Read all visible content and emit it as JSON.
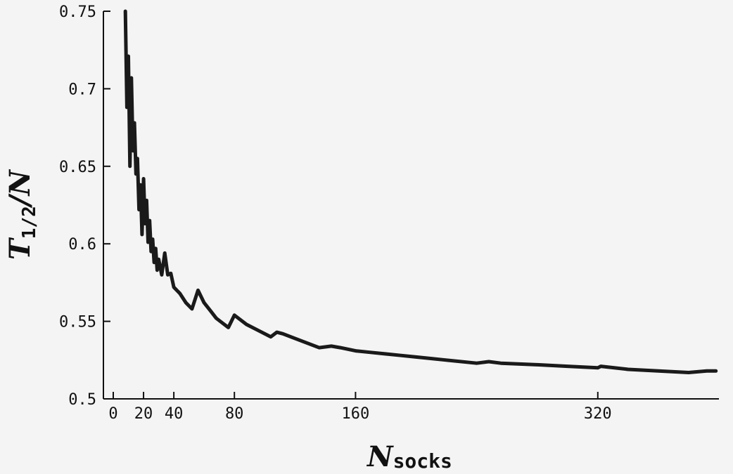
{
  "chart_data": {
    "type": "line",
    "title": "",
    "xlabel": {
      "main": "N",
      "sub": "socks"
    },
    "ylabel": {
      "main": "T",
      "sub": "1/2",
      "tail": "/N"
    },
    "xlim": [
      0,
      400
    ],
    "ylim": [
      0.5,
      0.75
    ],
    "xticks": [
      0,
      20,
      40,
      80,
      160,
      320
    ],
    "xtick_labels": [
      "0",
      "20",
      "40",
      "80",
      "160",
      "320"
    ],
    "yticks": [
      0.5,
      0.55,
      0.6,
      0.65,
      0.7,
      0.75
    ],
    "ytick_labels": [
      "0.5",
      "0.55",
      "0.6",
      "0.65",
      "0.7",
      "0.75"
    ],
    "grid": false,
    "series": [
      {
        "color": "#1a1a1a",
        "x": [
          8,
          9,
          10,
          11,
          12,
          13,
          14,
          15,
          16,
          17,
          18,
          19,
          20,
          21,
          22,
          23,
          24,
          25,
          26,
          27,
          28,
          29,
          30,
          32,
          34,
          36,
          38,
          40,
          44,
          48,
          52,
          56,
          60,
          64,
          68,
          72,
          76,
          80,
          88,
          96,
          104,
          108,
          112,
          120,
          136,
          144,
          150,
          160,
          170,
          180,
          190,
          200,
          220,
          240,
          248,
          256,
          280,
          300,
          320,
          322,
          340,
          360,
          380,
          392,
          398
        ],
        "y": [
          0.75,
          0.688,
          0.721,
          0.65,
          0.707,
          0.66,
          0.678,
          0.645,
          0.655,
          0.622,
          0.638,
          0.606,
          0.642,
          0.613,
          0.628,
          0.601,
          0.615,
          0.595,
          0.603,
          0.588,
          0.597,
          0.583,
          0.59,
          0.58,
          0.594,
          0.58,
          0.581,
          0.572,
          0.568,
          0.562,
          0.558,
          0.57,
          0.562,
          0.557,
          0.552,
          0.549,
          0.546,
          0.554,
          0.548,
          0.544,
          0.54,
          0.543,
          0.542,
          0.539,
          0.533,
          0.534,
          0.533,
          0.531,
          0.53,
          0.529,
          0.528,
          0.527,
          0.525,
          0.523,
          0.524,
          0.523,
          0.522,
          0.521,
          0.52,
          0.521,
          0.519,
          0.518,
          0.517,
          0.518,
          0.518
        ]
      }
    ]
  }
}
